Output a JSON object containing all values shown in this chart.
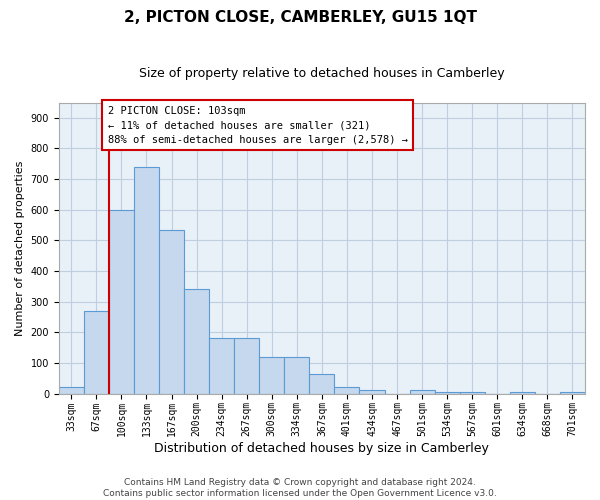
{
  "title": "2, PICTON CLOSE, CAMBERLEY, GU15 1QT",
  "subtitle": "Size of property relative to detached houses in Camberley",
  "xlabel": "Distribution of detached houses by size in Camberley",
  "ylabel": "Number of detached properties",
  "categories": [
    "33sqm",
    "67sqm",
    "100sqm",
    "133sqm",
    "167sqm",
    "200sqm",
    "234sqm",
    "267sqm",
    "300sqm",
    "334sqm",
    "367sqm",
    "401sqm",
    "434sqm",
    "467sqm",
    "501sqm",
    "534sqm",
    "567sqm",
    "601sqm",
    "634sqm",
    "668sqm",
    "701sqm"
  ],
  "values": [
    20,
    270,
    600,
    740,
    535,
    340,
    180,
    180,
    120,
    120,
    65,
    20,
    10,
    0,
    10,
    5,
    5,
    0,
    5,
    0,
    5
  ],
  "bar_color": "#c5d8ed",
  "bar_edge_color": "#5b9bd5",
  "vline_index": 2,
  "marker_label": "2 PICTON CLOSE: 103sqm",
  "annotation_line1": "← 11% of detached houses are smaller (321)",
  "annotation_line2": "88% of semi-detached houses are larger (2,578) →",
  "annotation_box_color": "#ffffff",
  "annotation_box_edge": "#cc0000",
  "vline_color": "#cc0000",
  "ylim": [
    0,
    950
  ],
  "yticks": [
    0,
    100,
    200,
    300,
    400,
    500,
    600,
    700,
    800,
    900
  ],
  "background_color": "#ffffff",
  "plot_bg_color": "#e8f0f8",
  "grid_color": "#c0cfe0",
  "footer_line1": "Contains HM Land Registry data © Crown copyright and database right 2024.",
  "footer_line2": "Contains public sector information licensed under the Open Government Licence v3.0.",
  "title_fontsize": 11,
  "subtitle_fontsize": 9,
  "xlabel_fontsize": 9,
  "ylabel_fontsize": 8,
  "tick_fontsize": 7,
  "footer_fontsize": 6.5,
  "annotation_fontsize": 7.5
}
